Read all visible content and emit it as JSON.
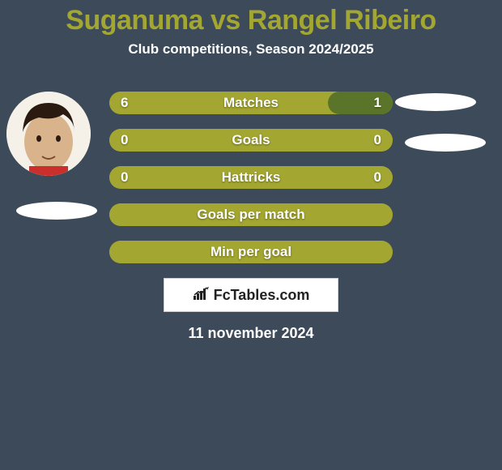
{
  "title": "Suganuma vs Rangel Ribeiro",
  "title_color": "#a3a630",
  "title_fontsize": 34,
  "subtitle": "Club competitions, Season 2024/2025",
  "subtitle_color": "#ffffff",
  "subtitle_fontsize": 17,
  "background_color": "#3c4a5a",
  "bar_left_color": "#a3a630",
  "bar_right_color": "#5a742a",
  "bar_text_color": "#ffffff",
  "bar_fontsize": 17,
  "bars": [
    {
      "label": "Matches",
      "left_val": "6",
      "right_val": "1",
      "left_pct": 77,
      "right_pct": 23,
      "show_vals": true
    },
    {
      "label": "Goals",
      "left_val": "0",
      "right_val": "0",
      "left_pct": 100,
      "right_pct": 0,
      "show_vals": true
    },
    {
      "label": "Hattricks",
      "left_val": "0",
      "right_val": "0",
      "left_pct": 100,
      "right_pct": 0,
      "show_vals": true
    },
    {
      "label": "Goals per match",
      "left_val": "",
      "right_val": "",
      "left_pct": 100,
      "right_pct": 0,
      "show_vals": false
    },
    {
      "label": "Min per goal",
      "left_val": "",
      "right_val": "",
      "left_pct": 100,
      "right_pct": 0,
      "show_vals": false
    }
  ],
  "brand": "FcTables.com",
  "brand_text_color": "#222222",
  "date": "11 november 2024",
  "date_color": "#ffffff",
  "date_fontsize": 18,
  "avatar_bg": "#f5f1e8",
  "disc_color": "#ffffff",
  "face_skin": "#d9b38c",
  "face_hair": "#2b1a0f"
}
